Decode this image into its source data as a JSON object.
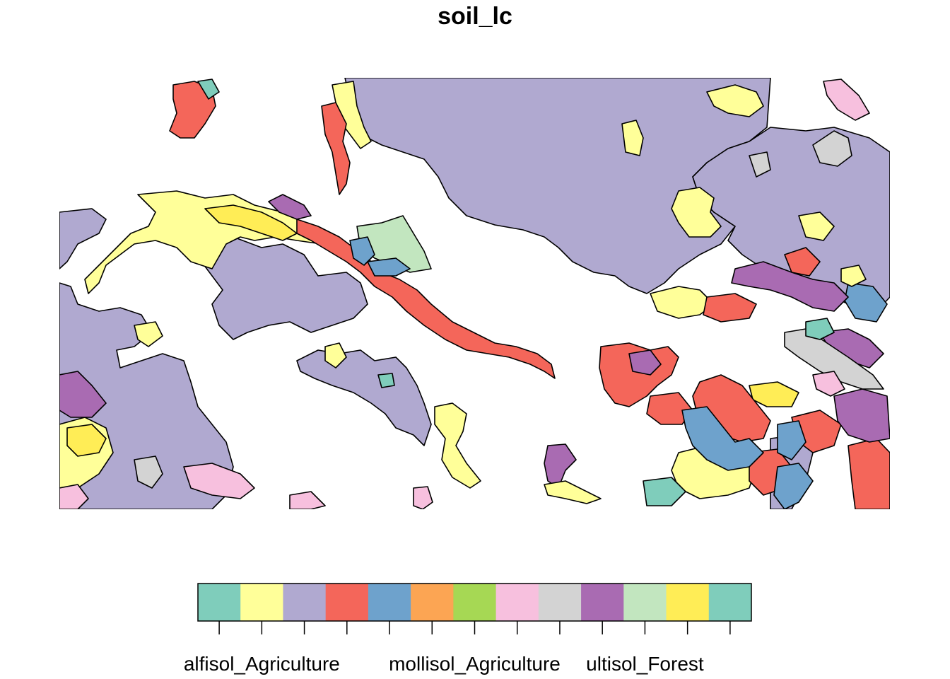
{
  "title": "soil_lc",
  "legend": {
    "colors": [
      "#7fcdbb",
      "#ffff99",
      "#b0a9d0",
      "#f4665a",
      "#6ea2cc",
      "#fca553",
      "#a6d854",
      "#f7c0de",
      "#d3d3d3",
      "#a96bb2",
      "#c2e6bf",
      "#ffed56",
      "#7fcdbb"
    ],
    "labels": [
      "alfisol_Agriculture",
      "mollisol_Agriculture",
      "ultisol_Forest"
    ],
    "label_positions": [
      1,
      6,
      10
    ]
  },
  "palette": {
    "teal": "#7fcdbb",
    "light_yellow": "#ffff99",
    "lavender": "#b0a9d0",
    "red": "#f4665a",
    "blue": "#6ea2cc",
    "orange": "#fca553",
    "green": "#a6d854",
    "pink": "#f7c0de",
    "grey": "#d3d3d3",
    "purple": "#a96bb2",
    "light_green": "#c2e6bf",
    "yellow": "#ffed56"
  }
}
